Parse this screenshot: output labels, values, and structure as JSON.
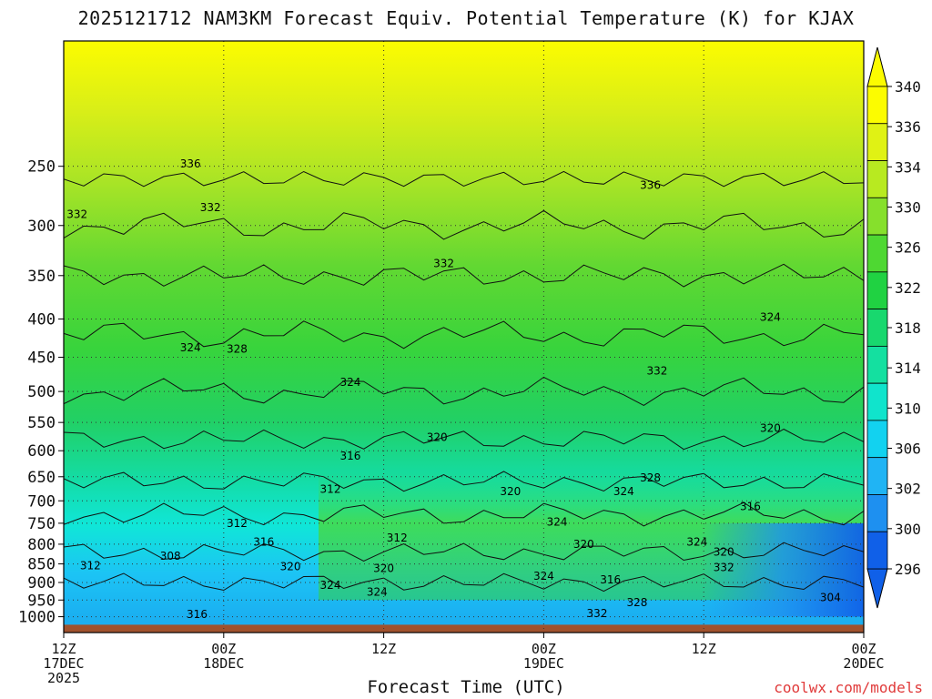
{
  "chart_data": {
    "type": "heatmap",
    "title": "2025121712 NAM3KM Forecast Equiv. Potential Temperature (K) for KJAX",
    "xlabel": "Forecast Time (UTC)",
    "credit": "coolwx.com/models",
    "y_axis": {
      "scale": "log-pressure",
      "range": [
        1050,
        170
      ],
      "ticks": [
        250,
        300,
        350,
        400,
        450,
        500,
        550,
        600,
        650,
        700,
        750,
        800,
        850,
        900,
        950,
        1000
      ]
    },
    "x_axis": {
      "range_hours": [
        0,
        60
      ],
      "ticks": [
        {
          "hour": 0,
          "lines": [
            "12Z",
            "17DEC",
            "2025"
          ]
        },
        {
          "hour": 12,
          "lines": [
            "00Z",
            "18DEC"
          ]
        },
        {
          "hour": 24,
          "lines": [
            "12Z"
          ]
        },
        {
          "hour": 36,
          "lines": [
            "00Z",
            "19DEC"
          ]
        },
        {
          "hour": 48,
          "lines": [
            "12Z"
          ]
        },
        {
          "hour": 60,
          "lines": [
            "00Z",
            "20DEC"
          ]
        }
      ]
    },
    "colorbar": {
      "levels": [
        296,
        300,
        302,
        306,
        310,
        314,
        318,
        322,
        326,
        330,
        334,
        336,
        340
      ],
      "label_levels": [
        340,
        336,
        334,
        330,
        326,
        322,
        318,
        314,
        310,
        306,
        302,
        300,
        296
      ],
      "colors": [
        "#1060e8",
        "#1e90f0",
        "#20b4f4",
        "#12d2f0",
        "#10e4cc",
        "#14e0a0",
        "#18d86e",
        "#20d242",
        "#4ed832",
        "#86e02c",
        "#b8ea20",
        "#e0f214",
        "#fcfc00"
      ]
    },
    "contour_labels": [
      {
        "text": "336",
        "hour": 9.5,
        "p": 248
      },
      {
        "text": "332",
        "hour": 1,
        "p": 290
      },
      {
        "text": "332",
        "hour": 11,
        "p": 284
      },
      {
        "text": "336",
        "hour": 44,
        "p": 265
      },
      {
        "text": "332",
        "hour": 28.5,
        "p": 337
      },
      {
        "text": "324",
        "hour": 9.5,
        "p": 437
      },
      {
        "text": "328",
        "hour": 13,
        "p": 439
      },
      {
        "text": "324",
        "hour": 53,
        "p": 398
      },
      {
        "text": "324",
        "hour": 21.5,
        "p": 486
      },
      {
        "text": "332",
        "hour": 44.5,
        "p": 469
      },
      {
        "text": "320",
        "hour": 28,
        "p": 576
      },
      {
        "text": "320",
        "hour": 53,
        "p": 560
      },
      {
        "text": "316",
        "hour": 21.5,
        "p": 610
      },
      {
        "text": "312",
        "hour": 20,
        "p": 675
      },
      {
        "text": "320",
        "hour": 33.5,
        "p": 680
      },
      {
        "text": "324",
        "hour": 42,
        "p": 680
      },
      {
        "text": "328",
        "hour": 44,
        "p": 652
      },
      {
        "text": "316",
        "hour": 51.5,
        "p": 712
      },
      {
        "text": "312",
        "hour": 13,
        "p": 750
      },
      {
        "text": "324",
        "hour": 37,
        "p": 747
      },
      {
        "text": "312",
        "hour": 25,
        "p": 785
      },
      {
        "text": "316",
        "hour": 15,
        "p": 795
      },
      {
        "text": "320",
        "hour": 39,
        "p": 800
      },
      {
        "text": "324",
        "hour": 47.5,
        "p": 795
      },
      {
        "text": "320",
        "hour": 49.5,
        "p": 820
      },
      {
        "text": "308",
        "hour": 8,
        "p": 830
      },
      {
        "text": "312",
        "hour": 2,
        "p": 855
      },
      {
        "text": "320",
        "hour": 17,
        "p": 857
      },
      {
        "text": "320",
        "hour": 24,
        "p": 862
      },
      {
        "text": "332",
        "hour": 49.5,
        "p": 859
      },
      {
        "text": "324",
        "hour": 36,
        "p": 882
      },
      {
        "text": "316",
        "hour": 41,
        "p": 893
      },
      {
        "text": "324",
        "hour": 20,
        "p": 908
      },
      {
        "text": "324",
        "hour": 23.5,
        "p": 927
      },
      {
        "text": "304",
        "hour": 57.5,
        "p": 942
      },
      {
        "text": "328",
        "hour": 43,
        "p": 957
      },
      {
        "text": "316",
        "hour": 10,
        "p": 993
      },
      {
        "text": "332",
        "hour": 40,
        "p": 990
      }
    ]
  }
}
